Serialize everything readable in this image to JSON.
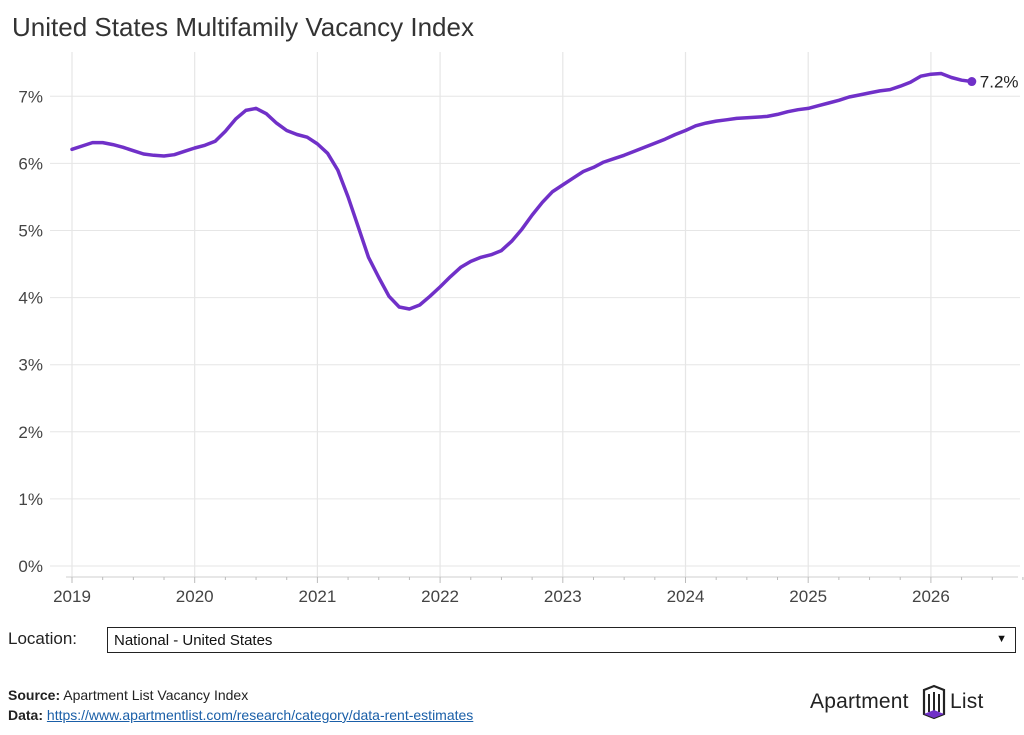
{
  "page": {
    "title": "United States Multifamily Vacancy Index"
  },
  "chart_data": {
    "type": "line",
    "title": "United States Multifamily Vacancy Index",
    "xlabel": "",
    "ylabel": "",
    "x_ticks": [
      "2019",
      "2020",
      "2021",
      "2022",
      "2023",
      "2024",
      "2025",
      "2026"
    ],
    "y_ticks": [
      "0%",
      "1%",
      "2%",
      "3%",
      "4%",
      "5%",
      "6%",
      "7%"
    ],
    "ylim": [
      0,
      7.7
    ],
    "xlim": [
      "2019-01",
      "2026-10"
    ],
    "grid": true,
    "line_color": "#7030c8",
    "end_label": "7.2%",
    "series": [
      {
        "x": [
          "2019-01",
          "2019-02",
          "2019-03",
          "2019-04",
          "2019-05",
          "2019-06",
          "2019-07",
          "2019-08",
          "2019-09",
          "2019-10",
          "2019-11",
          "2019-12",
          "2020-01",
          "2020-02",
          "2020-03",
          "2020-04",
          "2020-05",
          "2020-06",
          "2020-07",
          "2020-08",
          "2020-09",
          "2020-10",
          "2020-11",
          "2020-12",
          "2021-01",
          "2021-02",
          "2021-03",
          "2021-04",
          "2021-05",
          "2021-06",
          "2021-07",
          "2021-08",
          "2021-09",
          "2021-10",
          "2021-11",
          "2021-12",
          "2022-01",
          "2022-02",
          "2022-03",
          "2022-04",
          "2022-05",
          "2022-06",
          "2022-07",
          "2022-08",
          "2022-09",
          "2022-10",
          "2022-11",
          "2022-12",
          "2023-01",
          "2023-02",
          "2023-03",
          "2023-04",
          "2023-05",
          "2023-06",
          "2023-07",
          "2023-08",
          "2023-09",
          "2023-10",
          "2023-11",
          "2023-12",
          "2024-01",
          "2024-02",
          "2024-03",
          "2024-04",
          "2024-05",
          "2024-06",
          "2024-07",
          "2024-08",
          "2024-09",
          "2024-10",
          "2024-11",
          "2024-12",
          "2025-01",
          "2025-02",
          "2025-03",
          "2025-04",
          "2025-05",
          "2025-06",
          "2025-07",
          "2025-08",
          "2025-09",
          "2025-10",
          "2025-11",
          "2025-12",
          "2026-01",
          "2026-02",
          "2026-03",
          "2026-04",
          "2026-05"
        ],
        "values": [
          6.21,
          6.26,
          6.31,
          6.31,
          6.28,
          6.24,
          6.19,
          6.14,
          6.12,
          6.11,
          6.13,
          6.18,
          6.23,
          6.27,
          6.33,
          6.48,
          6.66,
          6.79,
          6.82,
          6.74,
          6.6,
          6.49,
          6.43,
          6.39,
          6.29,
          6.15,
          5.9,
          5.5,
          5.05,
          4.6,
          4.3,
          4.02,
          3.86,
          3.83,
          3.89,
          4.02,
          4.16,
          4.31,
          4.45,
          4.54,
          4.6,
          4.64,
          4.7,
          4.84,
          5.02,
          5.23,
          5.42,
          5.58,
          5.68,
          5.78,
          5.88,
          5.94,
          6.02,
          6.07,
          6.12,
          6.18,
          6.24,
          6.3,
          6.36,
          6.43,
          6.49,
          6.56,
          6.6,
          6.63,
          6.65,
          6.67,
          6.68,
          6.69,
          6.7,
          6.73,
          6.77,
          6.8,
          6.82,
          6.86,
          6.9,
          6.94,
          6.99,
          7.02,
          7.05,
          7.08,
          7.1,
          7.15,
          7.21,
          7.3,
          7.33,
          7.34,
          7.28,
          7.24,
          7.22
        ]
      }
    ]
  },
  "location": {
    "label": "Location:",
    "selected": "National - United States"
  },
  "footer": {
    "source_label": "Source:",
    "source_value": " Apartment List Vacancy Index",
    "data_label": "Data:",
    "data_link": "https://www.apartmentlist.com/research/category/data-rent-estimates"
  },
  "logo": {
    "word1": "Apartment",
    "word2": "List"
  }
}
